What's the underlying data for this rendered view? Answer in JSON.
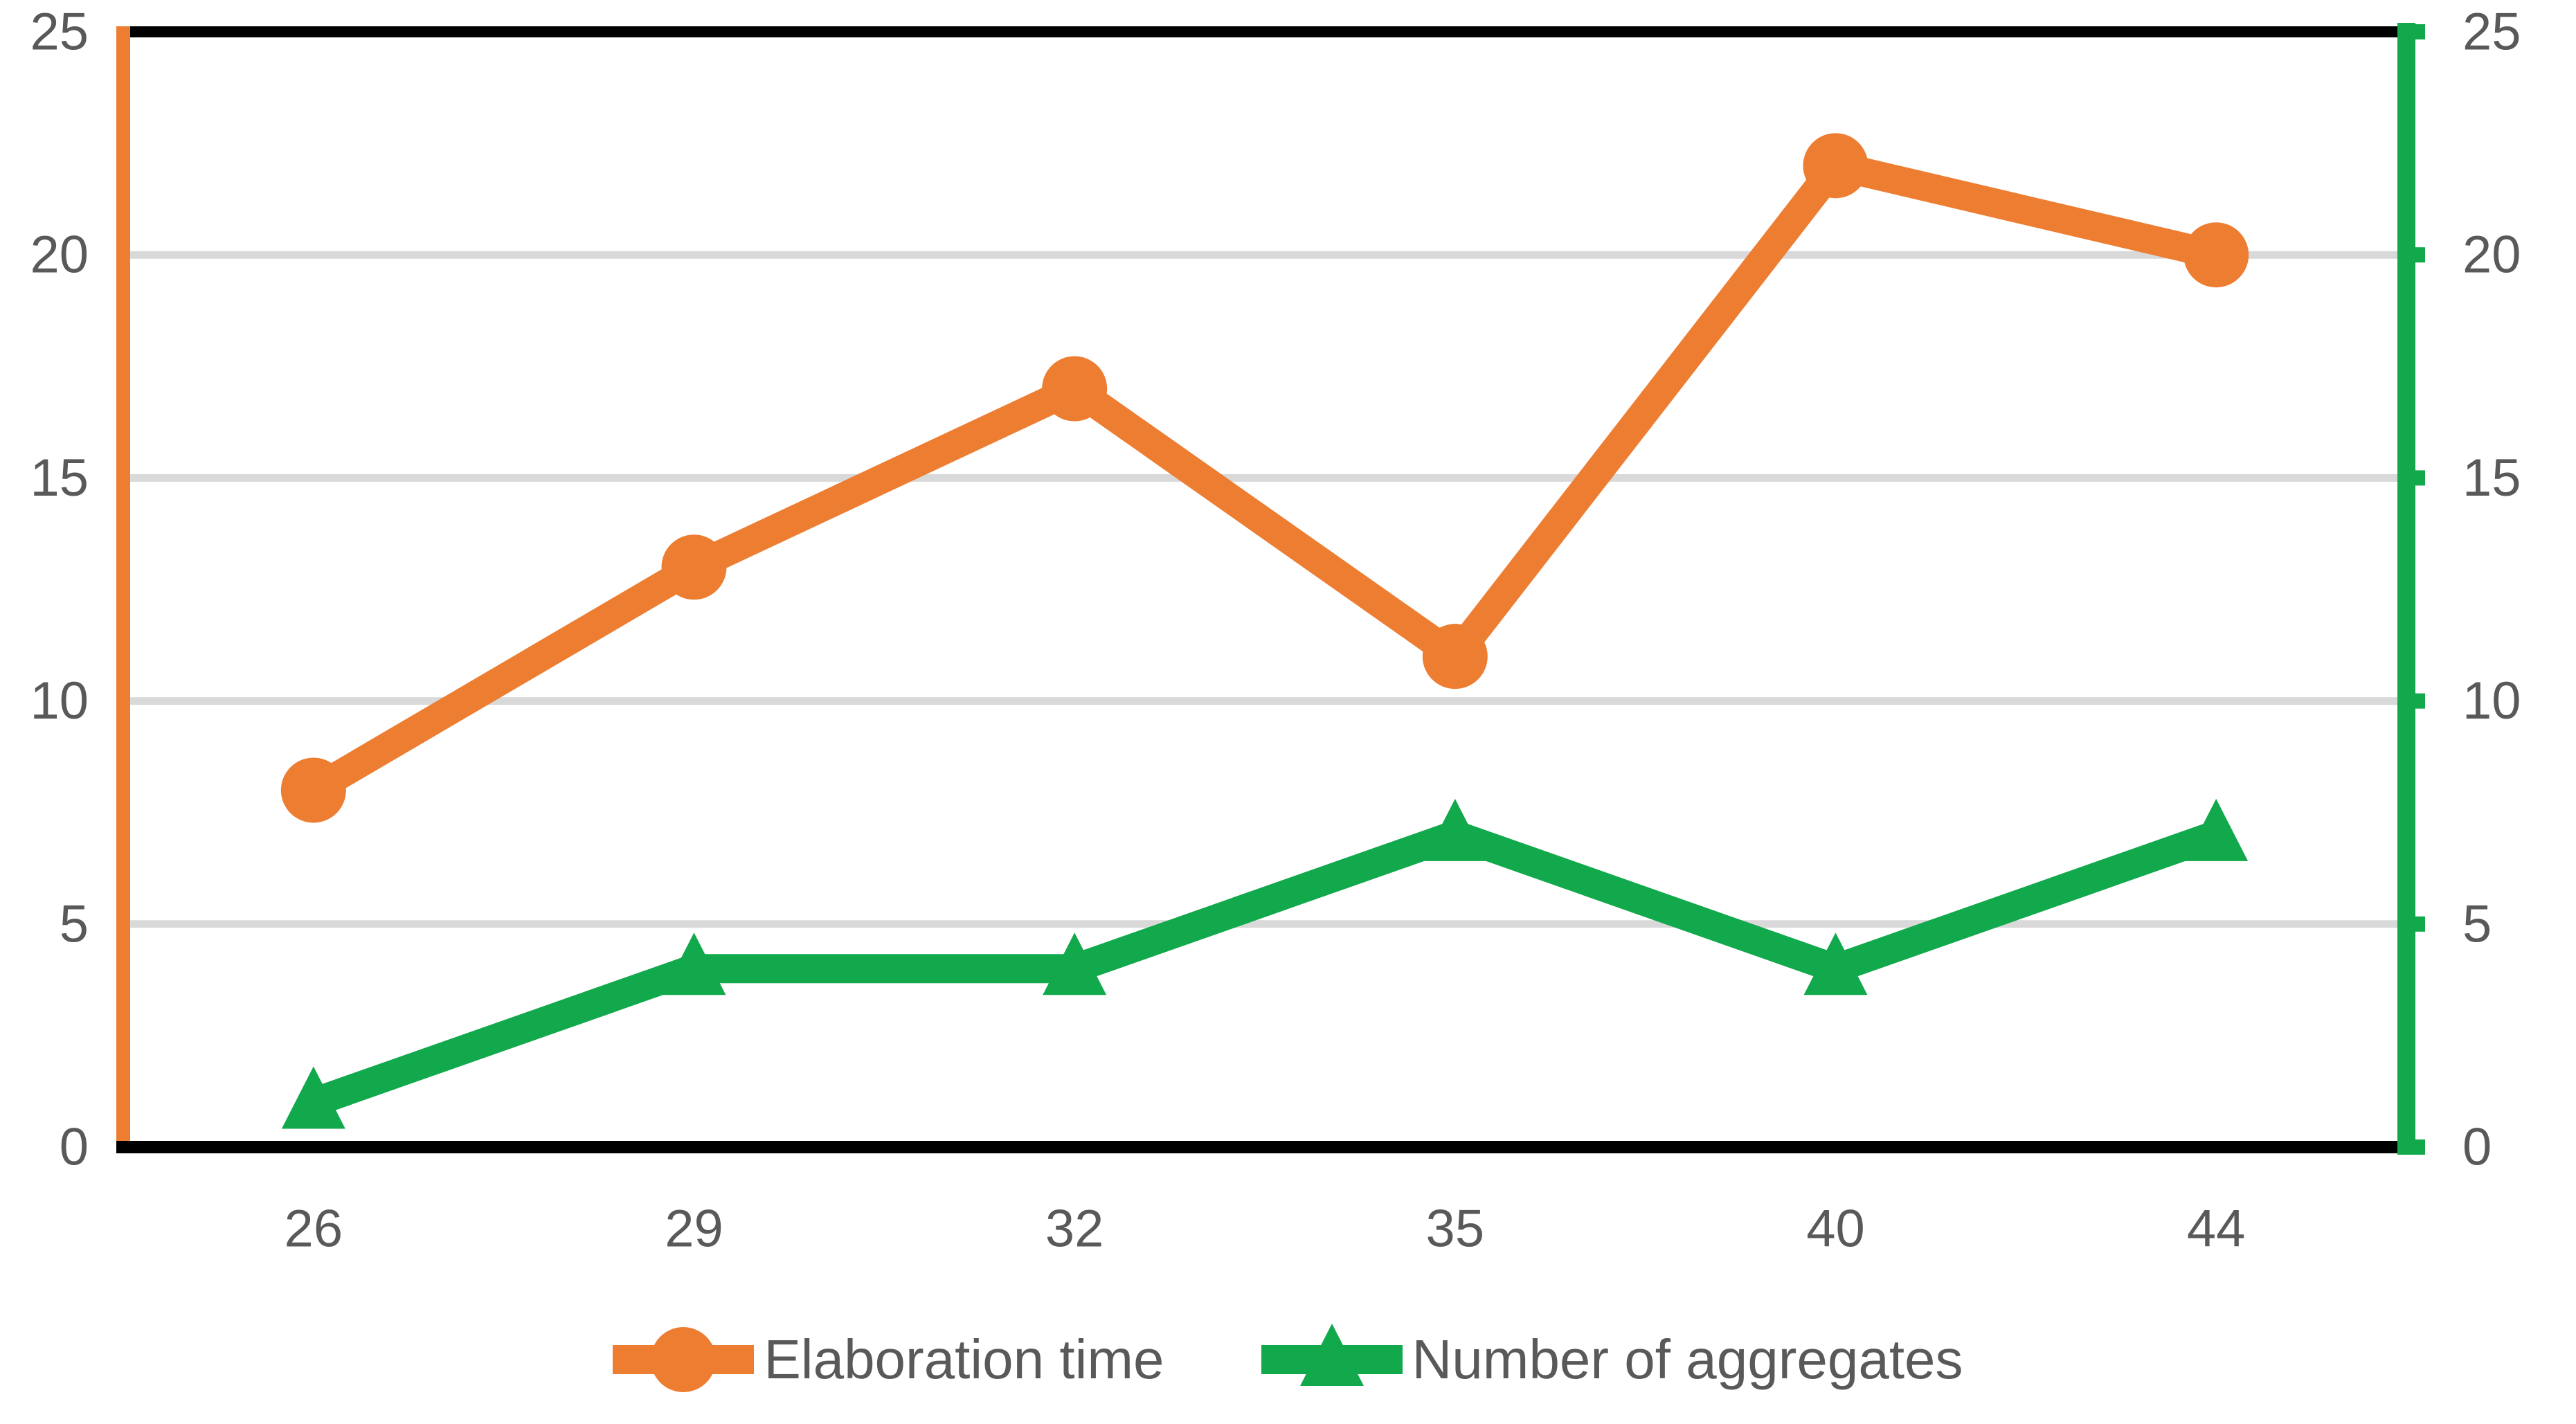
{
  "chart_data": {
    "type": "line",
    "categories": [
      "26",
      "29",
      "32",
      "35",
      "40",
      "44"
    ],
    "series": [
      {
        "name": "Elaboration time",
        "color": "#ED7D31",
        "marker": "circle",
        "axis": "left",
        "values": [
          8,
          13,
          17,
          11,
          22,
          20
        ]
      },
      {
        "name": "Number of aggregates",
        "color": "#12A84C",
        "marker": "triangle",
        "axis": "right",
        "values": [
          1,
          4,
          4,
          7,
          4,
          7
        ]
      }
    ],
    "y_axis_left": {
      "min": 0,
      "max": 25,
      "tick_step": 5,
      "tick_labels": [
        "0",
        "5",
        "10",
        "15",
        "20",
        "25"
      ],
      "spine_color": "#ED7D31"
    },
    "y_axis_right": {
      "min": 0,
      "max": 25,
      "tick_step": 5,
      "tick_labels": [
        "0",
        "5",
        "10",
        "15",
        "20",
        "25"
      ],
      "spine_color": "#12A84C"
    },
    "x_axis": {
      "tick_labels": [
        "26",
        "29",
        "32",
        "35",
        "40",
        "44"
      ]
    },
    "grid": {
      "show": true,
      "color": "#D9D9D9"
    },
    "frame_color": "#000000",
    "label_color": "#595959",
    "background_color": "#FFFFFF",
    "ylim": [
      0,
      25
    ],
    "legend": {
      "position": "bottom-center",
      "entries": [
        {
          "label": "Elaboration time",
          "marker": "circle",
          "color": "#ED7D31"
        },
        {
          "label": "Number of aggregates",
          "marker": "triangle",
          "color": "#12A84C"
        }
      ]
    }
  }
}
